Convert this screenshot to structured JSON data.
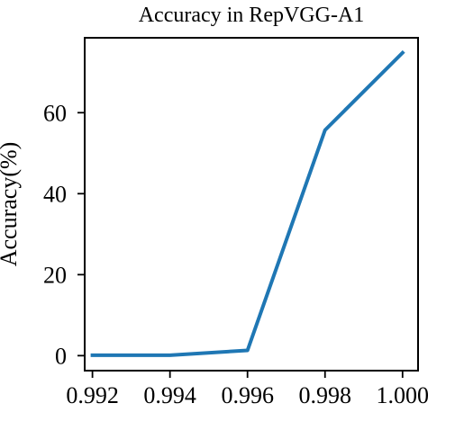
{
  "chart_data": {
    "type": "line",
    "title": "Accuracy in RepVGG-A1",
    "xlabel": "",
    "ylabel": "Accuracy(%)",
    "xlim": [
      0.9918,
      1.0004
    ],
    "ylim": [
      -3.7,
      78.5
    ],
    "xticks": [
      "0.992",
      "0.994",
      "0.996",
      "0.998",
      "1.000"
    ],
    "yticks": [
      "0",
      "20",
      "40",
      "60"
    ],
    "grid": false,
    "legend": "none",
    "series": [
      {
        "color": "#1f77b4",
        "x": [
          0.992,
          0.994,
          0.996,
          0.998,
          1.0
        ],
        "y": [
          0.1,
          0.1,
          1.3,
          55.7,
          74.8
        ]
      }
    ]
  }
}
